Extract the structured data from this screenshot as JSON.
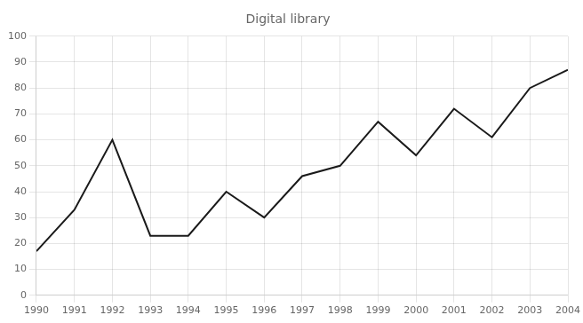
{
  "chart_data": {
    "type": "line",
    "title": "Digital library",
    "x": [
      1990,
      1991,
      1992,
      1993,
      1994,
      1995,
      1996,
      1997,
      1998,
      1999,
      2000,
      2001,
      2002,
      2003,
      2004
    ],
    "values": [
      17,
      33,
      60,
      23,
      23,
      40,
      30,
      46,
      50,
      67,
      54,
      72,
      61,
      80,
      87
    ],
    "color": "#1a1a1a",
    "xlim": [
      1990,
      2004
    ],
    "ylim": [
      0,
      100
    ],
    "xticks": [
      1990,
      1991,
      1992,
      1993,
      1994,
      1995,
      1996,
      1997,
      1998,
      1999,
      2000,
      2001,
      2002,
      2003,
      2004
    ],
    "yticks": [
      0,
      10,
      20,
      30,
      40,
      50,
      60,
      70,
      80,
      90,
      100
    ],
    "grid": true
  }
}
